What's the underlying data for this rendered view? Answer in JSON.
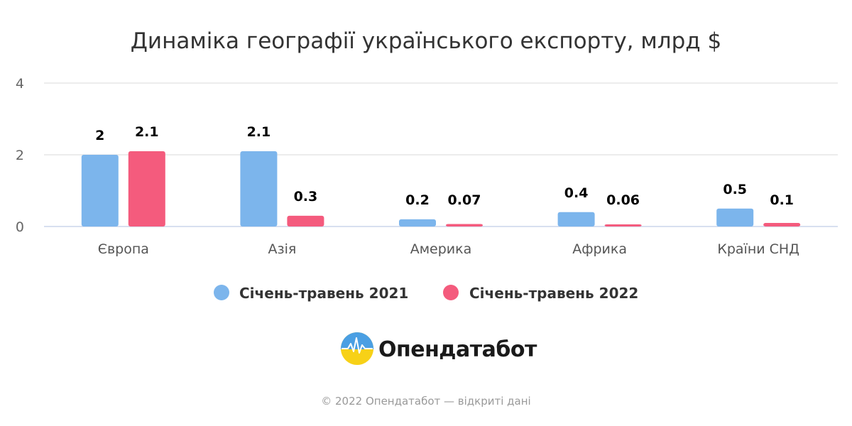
{
  "chart_data": {
    "type": "bar",
    "title": "Динаміка географії українського експорту, млрд $",
    "categories": [
      "Європа",
      "Азія",
      "Америка",
      "Африка",
      "Країни СНД"
    ],
    "series": [
      {
        "name": "Січень-травень 2021",
        "color": "#7cb5ec",
        "values": [
          2,
          2.1,
          0.2,
          0.4,
          0.5
        ],
        "labels": [
          "2",
          "2.1",
          "0.2",
          "0.4",
          "0.5"
        ]
      },
      {
        "name": "Січень-травень 2022",
        "color": "#f45b7d",
        "values": [
          2.1,
          0.3,
          0.07,
          0.06,
          0.1
        ],
        "labels": [
          "2.1",
          "0.3",
          "0.07",
          "0.06",
          "0.1"
        ]
      }
    ],
    "ylim": [
      0,
      4
    ],
    "yticks": [
      "0",
      "2",
      "4"
    ],
    "grid": true,
    "legend": "bottom"
  },
  "branding": {
    "logo_text": "Опендатабот",
    "copyright": "© 2022 Опендатабот — відкриті дані"
  }
}
